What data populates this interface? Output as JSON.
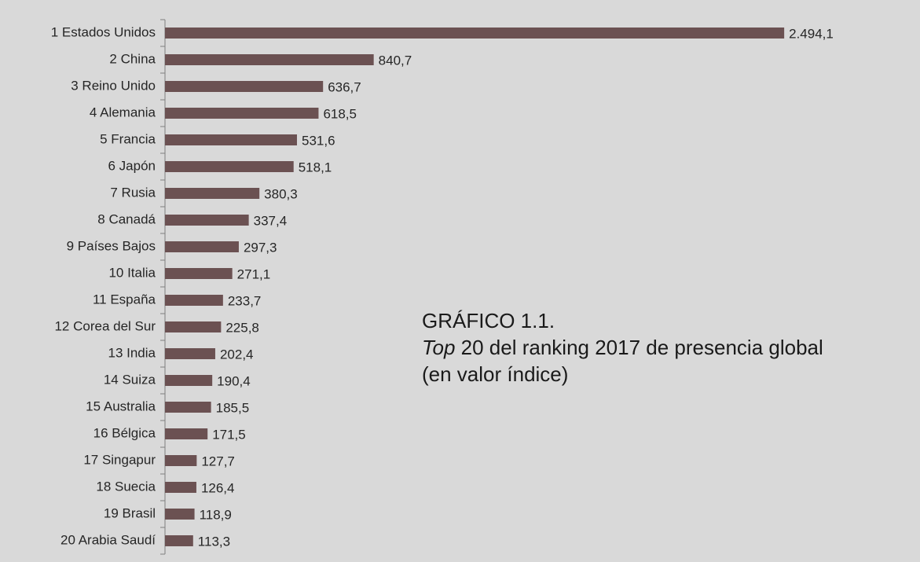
{
  "chart_data": {
    "type": "bar",
    "orientation": "horizontal",
    "title": "GRÁFICO 1.1.",
    "subtitle_parts": [
      "Top",
      " 20 del ranking 2017 de presencia global"
    ],
    "note": "(en valor índice)",
    "categories": [
      "1 Estados Unidos",
      "2 China",
      "3 Reino Unido",
      "4 Alemania",
      "5 Francia",
      "6 Japón",
      "7 Rusia",
      "8 Canadá",
      "9 Países Bajos",
      "10 Italia",
      "11 España",
      "12 Corea del Sur",
      "13 India",
      "14 Suiza",
      "15 Australia",
      "16 Bélgica",
      "17 Singapur",
      "18 Suecia",
      "19 Brasil",
      "20 Arabia Saudí"
    ],
    "values": [
      2494.1,
      840.7,
      636.7,
      618.5,
      531.6,
      518.1,
      380.3,
      337.4,
      297.3,
      271.1,
      233.7,
      225.8,
      202.4,
      190.4,
      185.5,
      171.5,
      127.7,
      126.4,
      118.9,
      113.3
    ],
    "value_labels": [
      "2.494,1",
      "840,7",
      "636,7",
      "618,5",
      "531,6",
      "518,1",
      "380,3",
      "337,4",
      "297,3",
      "271,1",
      "233,7",
      "225,8",
      "202,4",
      "190,4",
      "185,5",
      "171,5",
      "127,7",
      "126,4",
      "118,9",
      "113,3"
    ],
    "color": "#6b5152",
    "xlim": [
      0,
      2500
    ]
  }
}
